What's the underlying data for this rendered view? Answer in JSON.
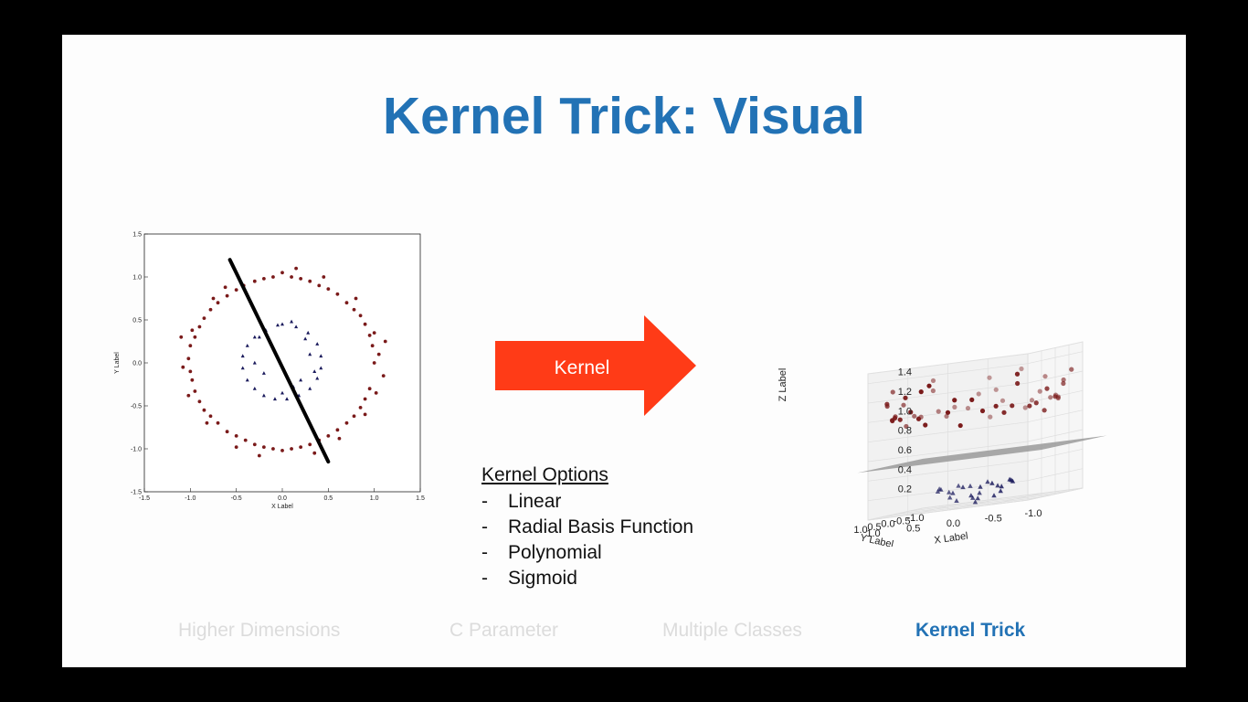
{
  "slide": {
    "title": "Kernel Trick: Visual",
    "arrow_label": "Kernel",
    "kernel_options": {
      "heading": "Kernel Options",
      "items": [
        "Linear",
        "Radial Basis Function",
        "Polynomial",
        "Sigmoid"
      ]
    },
    "nav": [
      {
        "label": "Higher Dimensions",
        "active": false
      },
      {
        "label": "C Parameter",
        "active": false
      },
      {
        "label": "Multiple Classes",
        "active": false
      },
      {
        "label": "Kernel Trick",
        "active": true
      }
    ],
    "colors": {
      "title": "#2272b5",
      "arrow": "#ff3b17",
      "outer_class": "#7a1a1a",
      "inner_class": "#1a1a5c",
      "plane": "#9a9a9a"
    }
  },
  "chart_data": [
    {
      "type": "scatter",
      "title": "",
      "xlabel": "X Label",
      "ylabel": "Y Label",
      "xlim": [
        -1.5,
        1.5
      ],
      "ylim": [
        -1.5,
        1.5
      ],
      "xticks": [
        "-1.5",
        "-1.0",
        "-0.5",
        "0.0",
        "0.5",
        "1.0",
        "1.5"
      ],
      "yticks": [
        "1.5",
        "1.0",
        "0.5",
        "0.0",
        "-0.5",
        "-1.0",
        "-1.5"
      ],
      "series": [
        {
          "marker": "circle",
          "color": "#7a1a1a",
          "points": [
            [
              1.0,
              0.0
            ],
            [
              0.98,
              0.2
            ],
            [
              0.95,
              0.32
            ],
            [
              0.9,
              0.45
            ],
            [
              0.85,
              0.55
            ],
            [
              0.78,
              0.62
            ],
            [
              0.7,
              0.7
            ],
            [
              0.6,
              0.8
            ],
            [
              0.5,
              0.86
            ],
            [
              0.4,
              0.9
            ],
            [
              0.3,
              0.95
            ],
            [
              0.2,
              0.98
            ],
            [
              0.1,
              1.0
            ],
            [
              0.0,
              1.05
            ],
            [
              -0.1,
              1.0
            ],
            [
              -0.2,
              0.98
            ],
            [
              -0.3,
              0.95
            ],
            [
              -0.42,
              0.9
            ],
            [
              -0.5,
              0.85
            ],
            [
              -0.6,
              0.78
            ],
            [
              -0.7,
              0.7
            ],
            [
              -0.78,
              0.62
            ],
            [
              -0.85,
              0.52
            ],
            [
              -0.9,
              0.42
            ],
            [
              -0.95,
              0.3
            ],
            [
              -1.0,
              0.2
            ],
            [
              -1.02,
              0.05
            ],
            [
              -1.0,
              -0.1
            ],
            [
              -0.98,
              -0.2
            ],
            [
              -0.95,
              -0.33
            ],
            [
              -0.9,
              -0.45
            ],
            [
              -0.85,
              -0.55
            ],
            [
              -0.78,
              -0.62
            ],
            [
              -0.7,
              -0.7
            ],
            [
              -0.6,
              -0.8
            ],
            [
              -0.5,
              -0.85
            ],
            [
              -0.4,
              -0.9
            ],
            [
              -0.3,
              -0.95
            ],
            [
              -0.2,
              -0.98
            ],
            [
              -0.1,
              -1.0
            ],
            [
              0.0,
              -1.02
            ],
            [
              0.1,
              -1.0
            ],
            [
              0.2,
              -0.98
            ],
            [
              0.3,
              -0.95
            ],
            [
              0.4,
              -0.9
            ],
            [
              0.5,
              -0.85
            ],
            [
              0.6,
              -0.78
            ],
            [
              0.7,
              -0.7
            ],
            [
              0.78,
              -0.62
            ],
            [
              0.85,
              -0.52
            ],
            [
              0.9,
              -0.42
            ],
            [
              0.95,
              -0.3
            ],
            [
              1.05,
              0.1
            ],
            [
              1.1,
              -0.15
            ],
            [
              -1.08,
              -0.05
            ],
            [
              0.15,
              1.1
            ],
            [
              -0.25,
              -1.08
            ],
            [
              1.0,
              0.35
            ],
            [
              -0.98,
              0.38
            ],
            [
              0.62,
              -0.88
            ],
            [
              -0.62,
              0.88
            ],
            [
              0.9,
              -0.6
            ],
            [
              1.12,
              0.25
            ],
            [
              -1.1,
              0.3
            ],
            [
              0.45,
              1.0
            ],
            [
              -0.5,
              -0.98
            ],
            [
              0.35,
              -1.05
            ],
            [
              -0.82,
              -0.7
            ],
            [
              0.8,
              0.75
            ],
            [
              -0.75,
              0.75
            ],
            [
              1.02,
              -0.35
            ],
            [
              -1.02,
              -0.38
            ]
          ]
        },
        {
          "marker": "triangle",
          "color": "#1a1a5c",
          "points": [
            [
              0.0,
              0.45
            ],
            [
              0.15,
              0.42
            ],
            [
              0.28,
              0.35
            ],
            [
              0.38,
              0.22
            ],
            [
              0.42,
              0.08
            ],
            [
              0.42,
              -0.06
            ],
            [
              0.38,
              -0.18
            ],
            [
              0.3,
              -0.3
            ],
            [
              0.18,
              -0.38
            ],
            [
              0.05,
              -0.42
            ],
            [
              -0.08,
              -0.42
            ],
            [
              -0.2,
              -0.38
            ],
            [
              -0.3,
              -0.3
            ],
            [
              -0.38,
              -0.2
            ],
            [
              -0.43,
              -0.06
            ],
            [
              -0.43,
              0.08
            ],
            [
              -0.38,
              0.2
            ],
            [
              -0.3,
              0.3
            ],
            [
              -0.18,
              0.38
            ],
            [
              -0.05,
              0.44
            ],
            [
              0.1,
              0.48
            ],
            [
              0.3,
              0.1
            ],
            [
              -0.2,
              -0.12
            ],
            [
              0.2,
              -0.2
            ],
            [
              -0.3,
              0.0
            ],
            [
              0.0,
              -0.35
            ],
            [
              0.25,
              0.28
            ],
            [
              -0.25,
              0.3
            ],
            [
              0.35,
              -0.1
            ],
            [
              0.12,
              -0.28
            ]
          ]
        }
      ],
      "decision_line": [
        [
          -0.57,
          1.2
        ],
        [
          0.5,
          -1.15
        ]
      ]
    },
    {
      "type": "scatter",
      "title": "",
      "xlabel": "X Label",
      "ylabel": "Y Label",
      "zlabel": "Z Label",
      "zticks": [
        "1.4",
        "1.2",
        "1.0",
        "0.8",
        "0.6",
        "0.4",
        "0.2"
      ],
      "xticks": [
        "1.0",
        "0.5",
        "0.0",
        "-0.5",
        "-1.0"
      ],
      "yticks": [
        "-1.0",
        "-0.5",
        "0.0",
        "0.5",
        "1.0"
      ],
      "zlim": [
        0.0,
        1.5
      ],
      "series": [
        {
          "marker": "circle",
          "color": "#7a1a1a",
          "points": [
            [
              1.0,
              0.0,
              1.0
            ],
            [
              0.9,
              0.4,
              0.97
            ],
            [
              0.7,
              0.7,
              0.98
            ],
            [
              0.4,
              0.9,
              0.97
            ],
            [
              0.0,
              1.0,
              1.0
            ],
            [
              -0.4,
              0.9,
              0.97
            ],
            [
              -0.7,
              0.7,
              0.98
            ],
            [
              -0.9,
              0.4,
              0.97
            ],
            [
              -1.0,
              0.0,
              1.0
            ],
            [
              -0.9,
              -0.4,
              0.97
            ],
            [
              -0.7,
              -0.7,
              0.98
            ],
            [
              -0.4,
              -0.9,
              0.97
            ],
            [
              0.0,
              -1.0,
              1.0
            ],
            [
              0.4,
              -0.9,
              0.97
            ],
            [
              0.7,
              -0.7,
              0.98
            ],
            [
              0.9,
              -0.4,
              0.97
            ],
            [
              1.1,
              0.2,
              1.25
            ],
            [
              -1.1,
              0.3,
              1.25
            ],
            [
              0.2,
              1.1,
              1.25
            ],
            [
              0.3,
              -1.1,
              1.25
            ],
            [
              0.8,
              0.8,
              1.3
            ],
            [
              -0.8,
              -0.8,
              1.3
            ],
            [
              0.95,
              -0.3,
              0.9
            ],
            [
              -0.95,
              0.3,
              0.9
            ],
            [
              0.5,
              0.85,
              0.95
            ],
            [
              -0.5,
              -0.85,
              0.95
            ],
            [
              0.6,
              -0.8,
              1.0
            ],
            [
              -0.6,
              0.8,
              1.0
            ],
            [
              1.05,
              0.1,
              1.12
            ],
            [
              -1.05,
              -0.1,
              1.12
            ],
            [
              0.15,
              -1.05,
              1.12
            ],
            [
              -0.15,
              1.05,
              1.12
            ],
            [
              0.85,
              0.55,
              1.0
            ],
            [
              -0.85,
              -0.55,
              1.0
            ],
            [
              0.55,
              -0.85,
              0.98
            ],
            [
              -0.55,
              0.85,
              0.98
            ],
            [
              1.0,
              0.3,
              1.1
            ],
            [
              -1.0,
              -0.3,
              1.1
            ],
            [
              0.3,
              1.0,
              1.1
            ],
            [
              -0.3,
              -1.0,
              1.1
            ],
            [
              0.9,
              -0.5,
              1.05
            ],
            [
              -0.9,
              0.5,
              1.05
            ],
            [
              0.7,
              0.6,
              0.92
            ],
            [
              -0.7,
              -0.6,
              0.92
            ],
            [
              0.45,
              -0.95,
              1.15
            ],
            [
              -0.45,
              0.95,
              1.15
            ],
            [
              1.1,
              -0.2,
              1.3
            ],
            [
              -1.1,
              0.2,
              1.3
            ],
            [
              0.25,
              0.95,
              0.88
            ],
            [
              -0.25,
              -0.95,
              0.88
            ],
            [
              0.98,
              0.15,
              0.85
            ],
            [
              -0.98,
              -0.15,
              0.85
            ],
            [
              0.65,
              0.75,
              1.2
            ],
            [
              -0.65,
              -0.75,
              1.2
            ],
            [
              0.8,
              -0.6,
              1.2
            ],
            [
              -0.8,
              0.6,
              1.2
            ]
          ]
        },
        {
          "marker": "triangle",
          "color": "#1a1a5c",
          "points": [
            [
              0.45,
              0.0,
              0.2
            ],
            [
              0.32,
              0.32,
              0.2
            ],
            [
              0.0,
              0.45,
              0.2
            ],
            [
              -0.32,
              0.32,
              0.2
            ],
            [
              -0.45,
              0.0,
              0.2
            ],
            [
              -0.32,
              -0.32,
              0.2
            ],
            [
              0.0,
              -0.45,
              0.2
            ],
            [
              0.32,
              -0.32,
              0.2
            ],
            [
              0.2,
              0.1,
              0.06
            ],
            [
              -0.1,
              0.2,
              0.06
            ],
            [
              -0.2,
              -0.1,
              0.06
            ],
            [
              0.1,
              -0.2,
              0.06
            ],
            [
              0.4,
              0.2,
              0.18
            ],
            [
              -0.2,
              0.4,
              0.18
            ],
            [
              -0.4,
              -0.2,
              0.18
            ],
            [
              0.2,
              -0.4,
              0.18
            ],
            [
              0.3,
              0.05,
              0.1
            ],
            [
              -0.05,
              0.3,
              0.1
            ],
            [
              -0.3,
              -0.05,
              0.1
            ],
            [
              0.05,
              -0.3,
              0.1
            ],
            [
              0.38,
              -0.15,
              0.15
            ],
            [
              -0.38,
              0.15,
              0.15
            ],
            [
              0.15,
              0.38,
              0.15
            ],
            [
              -0.15,
              -0.38,
              0.15
            ],
            [
              0.0,
              0.0,
              0.02
            ]
          ]
        }
      ],
      "separating_plane_z": 0.5
    }
  ]
}
